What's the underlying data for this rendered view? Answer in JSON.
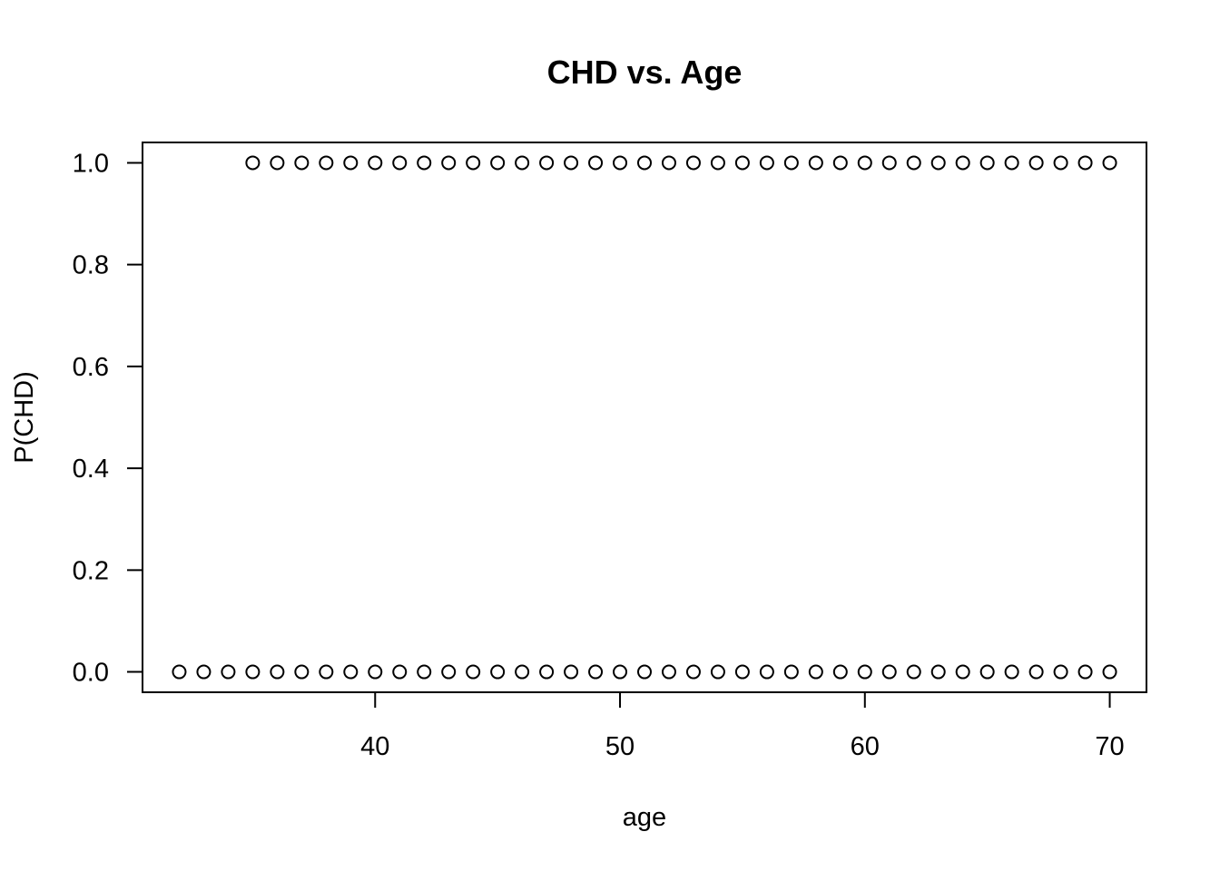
{
  "chart_data": {
    "type": "scatter",
    "title": "CHD vs. Age",
    "xlabel": "age",
    "ylabel": "P(CHD)",
    "xlim": [
      30.5,
      71.5
    ],
    "ylim": [
      -0.04,
      1.04
    ],
    "x_ticks": [
      40,
      50,
      60,
      70
    ],
    "x_tick_labels": [
      "40",
      "50",
      "60",
      "70"
    ],
    "y_ticks": [
      0.0,
      0.2,
      0.4,
      0.6,
      0.8,
      1.0
    ],
    "y_tick_labels": [
      "0.0",
      "0.2",
      "0.4",
      "0.6",
      "0.8",
      "1.0"
    ],
    "grid": false,
    "legend": "none",
    "marker": "open-circle",
    "marker_color": "#000000",
    "series": [
      {
        "points": [
          {
            "x": 32,
            "y": 0
          },
          {
            "x": 33,
            "y": 0
          },
          {
            "x": 34,
            "y": 0
          },
          {
            "x": 35,
            "y": 0
          },
          {
            "x": 36,
            "y": 0
          },
          {
            "x": 37,
            "y": 0
          },
          {
            "x": 38,
            "y": 0
          },
          {
            "x": 39,
            "y": 0
          },
          {
            "x": 40,
            "y": 0
          },
          {
            "x": 41,
            "y": 0
          },
          {
            "x": 42,
            "y": 0
          },
          {
            "x": 43,
            "y": 0
          },
          {
            "x": 44,
            "y": 0
          },
          {
            "x": 45,
            "y": 0
          },
          {
            "x": 46,
            "y": 0
          },
          {
            "x": 47,
            "y": 0
          },
          {
            "x": 48,
            "y": 0
          },
          {
            "x": 49,
            "y": 0
          },
          {
            "x": 50,
            "y": 0
          },
          {
            "x": 51,
            "y": 0
          },
          {
            "x": 52,
            "y": 0
          },
          {
            "x": 53,
            "y": 0
          },
          {
            "x": 54,
            "y": 0
          },
          {
            "x": 55,
            "y": 0
          },
          {
            "x": 56,
            "y": 0
          },
          {
            "x": 57,
            "y": 0
          },
          {
            "x": 58,
            "y": 0
          },
          {
            "x": 59,
            "y": 0
          },
          {
            "x": 60,
            "y": 0
          },
          {
            "x": 61,
            "y": 0
          },
          {
            "x": 62,
            "y": 0
          },
          {
            "x": 63,
            "y": 0
          },
          {
            "x": 64,
            "y": 0
          },
          {
            "x": 65,
            "y": 0
          },
          {
            "x": 66,
            "y": 0
          },
          {
            "x": 67,
            "y": 0
          },
          {
            "x": 68,
            "y": 0
          },
          {
            "x": 69,
            "y": 0
          },
          {
            "x": 70,
            "y": 0
          },
          {
            "x": 35,
            "y": 1
          },
          {
            "x": 36,
            "y": 1
          },
          {
            "x": 37,
            "y": 1
          },
          {
            "x": 38,
            "y": 1
          },
          {
            "x": 39,
            "y": 1
          },
          {
            "x": 40,
            "y": 1
          },
          {
            "x": 41,
            "y": 1
          },
          {
            "x": 42,
            "y": 1
          },
          {
            "x": 43,
            "y": 1
          },
          {
            "x": 44,
            "y": 1
          },
          {
            "x": 45,
            "y": 1
          },
          {
            "x": 46,
            "y": 1
          },
          {
            "x": 47,
            "y": 1
          },
          {
            "x": 48,
            "y": 1
          },
          {
            "x": 49,
            "y": 1
          },
          {
            "x": 50,
            "y": 1
          },
          {
            "x": 51,
            "y": 1
          },
          {
            "x": 52,
            "y": 1
          },
          {
            "x": 53,
            "y": 1
          },
          {
            "x": 54,
            "y": 1
          },
          {
            "x": 55,
            "y": 1
          },
          {
            "x": 56,
            "y": 1
          },
          {
            "x": 57,
            "y": 1
          },
          {
            "x": 58,
            "y": 1
          },
          {
            "x": 59,
            "y": 1
          },
          {
            "x": 60,
            "y": 1
          },
          {
            "x": 61,
            "y": 1
          },
          {
            "x": 62,
            "y": 1
          },
          {
            "x": 63,
            "y": 1
          },
          {
            "x": 64,
            "y": 1
          },
          {
            "x": 65,
            "y": 1
          },
          {
            "x": 66,
            "y": 1
          },
          {
            "x": 67,
            "y": 1
          },
          {
            "x": 68,
            "y": 1
          },
          {
            "x": 69,
            "y": 1
          },
          {
            "x": 70,
            "y": 1
          }
        ]
      }
    ]
  }
}
